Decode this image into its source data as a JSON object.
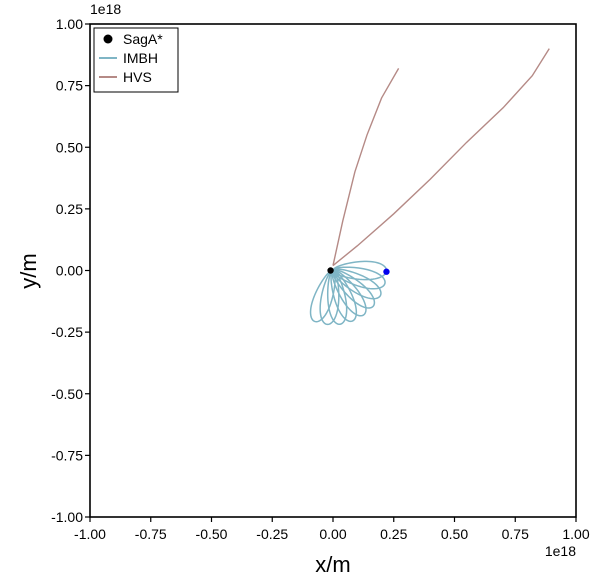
{
  "chart_data": {
    "type": "line",
    "title": "",
    "xlabel": "x/m",
    "ylabel": "y/m",
    "x_offset_label": "1e18",
    "y_offset_label": "1e18",
    "xlim": [
      -1.0,
      1.0
    ],
    "ylim": [
      -1.0,
      1.0
    ],
    "x_ticks": [
      -1.0,
      -0.75,
      -0.5,
      -0.25,
      0.0,
      0.25,
      0.5,
      0.75,
      1.0
    ],
    "x_tick_labels": [
      "-1.00",
      "-0.75",
      "-0.50",
      "-0.25",
      "0.00",
      "0.25",
      "0.50",
      "0.75",
      "1.00"
    ],
    "y_ticks": [
      1.0,
      0.75,
      0.5,
      0.25,
      0.0,
      -0.25,
      -0.5,
      -0.75,
      -1.0
    ],
    "y_tick_labels": [
      "1.00",
      "0.75",
      "0.50",
      "0.25",
      "0.00",
      "-0.25",
      "-0.50",
      "-0.75",
      "-1.00"
    ],
    "grid": false,
    "legend_position": "top-left",
    "legend": [
      {
        "label": "SagA*",
        "marker": "dot",
        "color": "#000000"
      },
      {
        "label": "IMBH",
        "marker": "line",
        "color": "#7fb5c5"
      },
      {
        "label": "HVS",
        "marker": "line",
        "color": "#b58a86"
      }
    ],
    "series": [
      {
        "name": "SagA*",
        "kind": "point",
        "color": "#000000",
        "points": [
          [
            -0.01,
            0.0
          ]
        ]
      },
      {
        "name": "IMBH",
        "kind": "rosette",
        "color": "#7fb5c5",
        "focus": [
          0.0,
          0.0
        ],
        "initial_position": [
          0.22,
          -0.005
        ],
        "loops": 9,
        "loop_length": 0.22,
        "loop_half_width": 0.045,
        "start_angle_deg": 0,
        "end_angle_deg": -110
      },
      {
        "name": "HVS",
        "kind": "line",
        "color": "#b58a86",
        "points": [
          [
            0.0,
            0.02
          ],
          [
            0.04,
            0.2
          ],
          [
            0.09,
            0.4
          ],
          [
            0.14,
            0.55
          ],
          [
            0.2,
            0.7
          ],
          [
            0.27,
            0.82
          ]
        ]
      },
      {
        "name": "HVS",
        "kind": "line",
        "color": "#b58a86",
        "points": [
          [
            0.0,
            0.02
          ],
          [
            0.1,
            0.1
          ],
          [
            0.25,
            0.23
          ],
          [
            0.4,
            0.37
          ],
          [
            0.55,
            0.52
          ],
          [
            0.7,
            0.66
          ],
          [
            0.82,
            0.79
          ],
          [
            0.89,
            0.9
          ]
        ]
      },
      {
        "name": "IMBH",
        "kind": "point",
        "color": "#0000ee",
        "points": [
          [
            0.22,
            -0.005
          ]
        ]
      }
    ]
  }
}
